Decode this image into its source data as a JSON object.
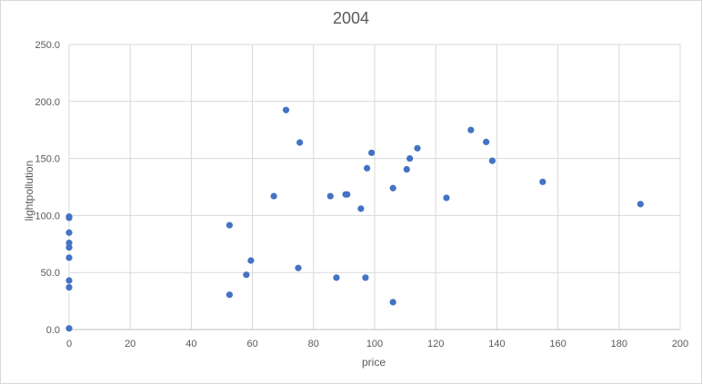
{
  "chart_data": {
    "type": "scatter",
    "title": "2004",
    "xlabel": "price",
    "ylabel": "lightpollution",
    "xlim": [
      0,
      200
    ],
    "ylim": [
      0,
      250
    ],
    "x_ticks": [
      "0",
      "20",
      "40",
      "60",
      "80",
      "100",
      "120",
      "140",
      "160",
      "180",
      "200"
    ],
    "y_ticks": [
      "0.0",
      "50.0",
      "100.0",
      "150.0",
      "200.0",
      "250.0"
    ],
    "grid": true,
    "legend": "none",
    "marker_color": "#4472c4",
    "points": [
      [
        0,
        1
      ],
      [
        0,
        37
      ],
      [
        0,
        43
      ],
      [
        0,
        63
      ],
      [
        0,
        72
      ],
      [
        0,
        76
      ],
      [
        0,
        85
      ],
      [
        0,
        98
      ],
      [
        0,
        99
      ],
      [
        52.5,
        30.5
      ],
      [
        52.5,
        91.5
      ],
      [
        58,
        48
      ],
      [
        59.5,
        60.5
      ],
      [
        67,
        117
      ],
      [
        71,
        192.5
      ],
      [
        75,
        54
      ],
      [
        75.5,
        164
      ],
      [
        85.5,
        117
      ],
      [
        87.5,
        45.5
      ],
      [
        90.5,
        118.5
      ],
      [
        91,
        118.5
      ],
      [
        95.5,
        106
      ],
      [
        97,
        45.5
      ],
      [
        97.5,
        141.5
      ],
      [
        99,
        155
      ],
      [
        106,
        124
      ],
      [
        106,
        24
      ],
      [
        110.5,
        140.5
      ],
      [
        111.5,
        150
      ],
      [
        114,
        159
      ],
      [
        123.5,
        115.5
      ],
      [
        131.5,
        175
      ],
      [
        136.5,
        164.5
      ],
      [
        138.5,
        148
      ],
      [
        155,
        129.5
      ],
      [
        187,
        110
      ]
    ]
  }
}
